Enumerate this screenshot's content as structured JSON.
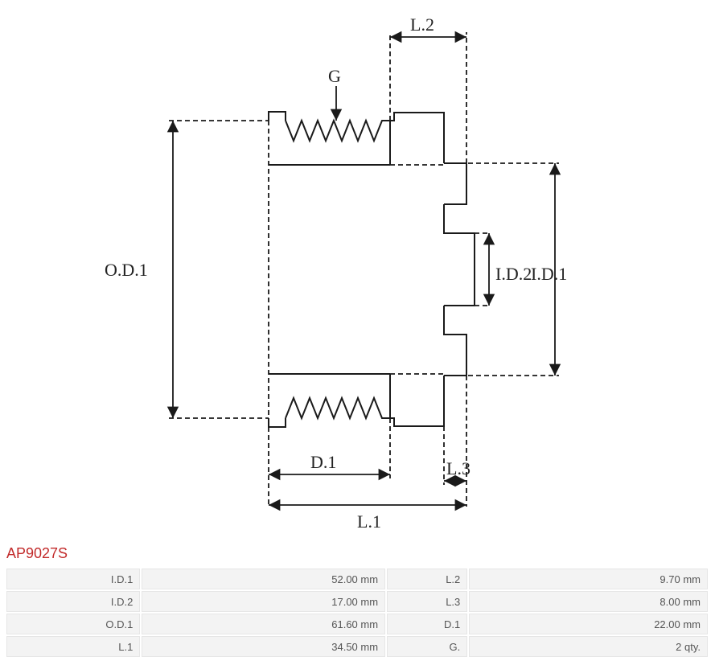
{
  "part_number": "AP9027S",
  "diagram": {
    "type": "engineering-drawing",
    "stroke_color": "#1a1a1a",
    "stroke_width": 2,
    "dash_pattern": "6,4",
    "labels": {
      "od1": "O.D.1",
      "id1": "I.D.1",
      "id2": "I.D.2",
      "l1": "L.1",
      "l2": "L.2",
      "l3": "L.3",
      "d1": "D.1",
      "g": "G"
    },
    "label_fontsize": 22,
    "label_fontfamily": "Georgia, serif",
    "background_color": "#ffffff"
  },
  "specs": {
    "rows": [
      {
        "label1": "I.D.1",
        "value1": "52.00 mm",
        "label2": "L.2",
        "value2": "9.70 mm"
      },
      {
        "label1": "I.D.2",
        "value1": "17.00 mm",
        "label2": "L.3",
        "value2": "8.00 mm"
      },
      {
        "label1": "O.D.1",
        "value1": "61.60 mm",
        "label2": "D.1",
        "value2": "22.00 mm"
      },
      {
        "label1": "L.1",
        "value1": "34.50 mm",
        "label2": "G.",
        "value2": "2 qty."
      }
    ]
  },
  "table_style": {
    "row_bg": "#f3f3f3",
    "border_color": "#e6e6e6",
    "font_size": 13,
    "text_color": "#555555",
    "part_number_color": "#c22b2b"
  }
}
